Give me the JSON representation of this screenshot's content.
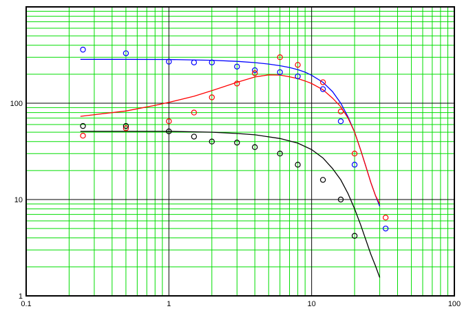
{
  "chart_data": {
    "type": "scatter",
    "title": "",
    "xlabel": "",
    "ylabel": "",
    "x_scale": "log",
    "y_scale": "log",
    "xlim": [
      0.1,
      100
    ],
    "ylim": [
      1,
      1000
    ],
    "grid": true,
    "grid_colors": {
      "major": "#000000",
      "minor": "#00dd00"
    },
    "x_ticks": [
      {
        "value": 0.1,
        "label": "0.1"
      },
      {
        "value": 1,
        "label": "1"
      },
      {
        "value": 10,
        "label": "10"
      },
      {
        "value": 100,
        "label": "100"
      }
    ],
    "y_ticks": [
      {
        "value": 1,
        "label": "1"
      },
      {
        "value": 10,
        "label": "10"
      },
      {
        "value": 100,
        "label": "100"
      }
    ],
    "series": [
      {
        "color": "#0000ff",
        "points": [
          [
            0.25,
            360
          ],
          [
            0.5,
            330
          ],
          [
            1,
            270
          ],
          [
            1.5,
            265
          ],
          [
            2,
            265
          ],
          [
            3,
            240
          ],
          [
            4,
            220
          ],
          [
            6,
            210
          ],
          [
            8,
            190
          ],
          [
            12,
            140
          ],
          [
            16,
            65
          ],
          [
            20,
            23
          ],
          [
            33,
            5
          ]
        ],
        "curve": [
          [
            0.24,
            285
          ],
          [
            0.5,
            285
          ],
          [
            1,
            284
          ],
          [
            2,
            279
          ],
          [
            3,
            272
          ],
          [
            4,
            264
          ],
          [
            5,
            255
          ],
          [
            6,
            245
          ],
          [
            7,
            235
          ],
          [
            8,
            223
          ],
          [
            9,
            210
          ],
          [
            10,
            195
          ],
          [
            12,
            165
          ],
          [
            14,
            132
          ],
          [
            16,
            100
          ],
          [
            18,
            72
          ],
          [
            20,
            50
          ],
          [
            22,
            33
          ],
          [
            24,
            22
          ],
          [
            26,
            15
          ],
          [
            28,
            11
          ],
          [
            30,
            8.5
          ]
        ]
      },
      {
        "color": "#ff0000",
        "points": [
          [
            0.25,
            46
          ],
          [
            0.5,
            55
          ],
          [
            1,
            65
          ],
          [
            1.5,
            80
          ],
          [
            2,
            115
          ],
          [
            3,
            160
          ],
          [
            4,
            205
          ],
          [
            6,
            300
          ],
          [
            8,
            250
          ],
          [
            12,
            165
          ],
          [
            16,
            82
          ],
          [
            20,
            30
          ],
          [
            33,
            6.5
          ]
        ],
        "curve": [
          [
            0.24,
            73
          ],
          [
            0.5,
            83
          ],
          [
            0.8,
            95
          ],
          [
            1,
            102
          ],
          [
            1.5,
            118
          ],
          [
            2,
            135
          ],
          [
            3,
            165
          ],
          [
            4,
            187
          ],
          [
            5,
            197
          ],
          [
            6,
            196
          ],
          [
            7,
            188
          ],
          [
            8,
            180
          ],
          [
            9,
            170
          ],
          [
            10,
            160
          ],
          [
            12,
            138
          ],
          [
            14,
            113
          ],
          [
            16,
            92
          ],
          [
            18,
            70
          ],
          [
            20,
            50
          ],
          [
            22,
            33
          ],
          [
            24,
            22
          ],
          [
            26,
            15
          ],
          [
            28,
            11
          ],
          [
            30,
            9
          ]
        ]
      },
      {
        "color": "#000000",
        "points": [
          [
            0.25,
            58
          ],
          [
            0.5,
            58
          ],
          [
            1,
            51
          ],
          [
            1.5,
            45
          ],
          [
            2,
            40
          ],
          [
            3,
            39
          ],
          [
            4,
            35
          ],
          [
            6,
            30
          ],
          [
            8,
            23
          ],
          [
            12,
            16
          ],
          [
            16,
            10
          ],
          [
            20,
            4.2
          ]
        ],
        "curve": [
          [
            0.24,
            51
          ],
          [
            0.5,
            51
          ],
          [
            1,
            51
          ],
          [
            2,
            50
          ],
          [
            3,
            48.5
          ],
          [
            4,
            47
          ],
          [
            6,
            43
          ],
          [
            8,
            38.5
          ],
          [
            10,
            33
          ],
          [
            12,
            27
          ],
          [
            14,
            21
          ],
          [
            16,
            16
          ],
          [
            18,
            11.5
          ],
          [
            20,
            8
          ],
          [
            22,
            5.5
          ],
          [
            24,
            3.8
          ],
          [
            26,
            2.7
          ],
          [
            28,
            2.05
          ],
          [
            30,
            1.55
          ]
        ]
      }
    ]
  }
}
